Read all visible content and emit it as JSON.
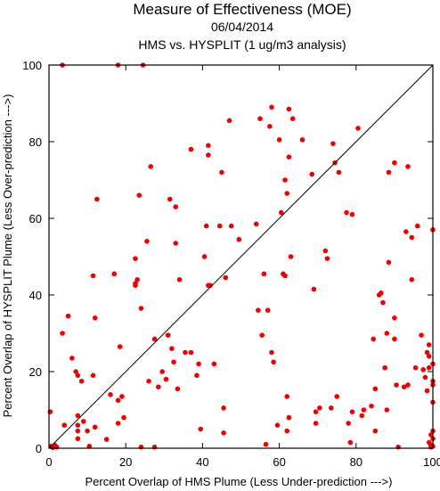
{
  "chart_data": {
    "type": "scatter",
    "title": "Measure of Effectiveness (MOE)",
    "subtitle_date": "06/04/2014",
    "subtitle_comparison": "HMS vs. HYSPLIT  (1 ug/m3 analysis)",
    "xlabel": "Percent Overlap of HMS Plume (Less Under-prediction --->)",
    "ylabel": "Percent Overlap of HYSPLIT Plume (Less Over-prediction --->)",
    "xlim": [
      0,
      100
    ],
    "ylim": [
      0,
      100
    ],
    "xticks": [
      0,
      20,
      40,
      60,
      80,
      100
    ],
    "yticks": [
      0,
      20,
      40,
      60,
      80,
      100
    ],
    "xtick_labels": [
      "0",
      "20",
      "40",
      "60",
      "80",
      "100"
    ],
    "ytick_labels": [
      "0",
      "20",
      "40",
      "60",
      "80",
      "100"
    ],
    "reference_line": {
      "from": [
        0,
        0
      ],
      "to": [
        100,
        100
      ],
      "color": "#000000"
    },
    "grid": false,
    "marker_color": "#ee0000",
    "points": [
      [
        0.3,
        9.5
      ],
      [
        0.5,
        0.5
      ],
      [
        1,
        0.2
      ],
      [
        1.5,
        0.8
      ],
      [
        2,
        0.3
      ],
      [
        3.5,
        100
      ],
      [
        3.5,
        30
      ],
      [
        4,
        6
      ],
      [
        5,
        34.5
      ],
      [
        6,
        23.5
      ],
      [
        7,
        20
      ],
      [
        7.5,
        19
      ],
      [
        7.5,
        8.5
      ],
      [
        7.5,
        6
      ],
      [
        7.5,
        4.5
      ],
      [
        7.5,
        2.5
      ],
      [
        8.5,
        17.5
      ],
      [
        9,
        7
      ],
      [
        10,
        4.5
      ],
      [
        10.5,
        0.5
      ],
      [
        11.5,
        45
      ],
      [
        11.5,
        19
      ],
      [
        12,
        34
      ],
      [
        12.5,
        65
      ],
      [
        12,
        5.5
      ],
      [
        15,
        2.3
      ],
      [
        16,
        14
      ],
      [
        17,
        45.5
      ],
      [
        18,
        100
      ],
      [
        18,
        12.5
      ],
      [
        18,
        6.5
      ],
      [
        18.5,
        26.5
      ],
      [
        19,
        13.5
      ],
      [
        19.5,
        8
      ],
      [
        22.5,
        49.5
      ],
      [
        22.5,
        43
      ],
      [
        22.5,
        42.5
      ],
      [
        23,
        44
      ],
      [
        23.5,
        66
      ],
      [
        24,
        36.5
      ],
      [
        24.5,
        100
      ],
      [
        24,
        0.3
      ],
      [
        25.5,
        54
      ],
      [
        26,
        17.5
      ],
      [
        26.5,
        73.5
      ],
      [
        27.5,
        28.5
      ],
      [
        27.5,
        0.3
      ],
      [
        28.5,
        16
      ],
      [
        29.5,
        20
      ],
      [
        30.5,
        18
      ],
      [
        31,
        29.5
      ],
      [
        31.5,
        65
      ],
      [
        32,
        26
      ],
      [
        32.5,
        22.5
      ],
      [
        33,
        53.5
      ],
      [
        33,
        63
      ],
      [
        33.5,
        15.5
      ],
      [
        34,
        44
      ],
      [
        35.5,
        25
      ],
      [
        37,
        78
      ],
      [
        37,
        25
      ],
      [
        38.5,
        19
      ],
      [
        39,
        22
      ],
      [
        39.5,
        5
      ],
      [
        40.5,
        50
      ],
      [
        41,
        58
      ],
      [
        41.5,
        79
      ],
      [
        41.5,
        76.5
      ],
      [
        41.5,
        42.5
      ],
      [
        42,
        42.5
      ],
      [
        43,
        22
      ],
      [
        44.5,
        58
      ],
      [
        45,
        72
      ],
      [
        45.5,
        10.5
      ],
      [
        45.5,
        4
      ],
      [
        46,
        44.5
      ],
      [
        47,
        85.5
      ],
      [
        47.5,
        58
      ],
      [
        49.5,
        54.5
      ],
      [
        54,
        58.5
      ],
      [
        54.5,
        36
      ],
      [
        55,
        86
      ],
      [
        55.5,
        29.5
      ],
      [
        56,
        45.5
      ],
      [
        56.5,
        1
      ],
      [
        57,
        36
      ],
      [
        57.5,
        84
      ],
      [
        58,
        89
      ],
      [
        58,
        25
      ],
      [
        58.5,
        22.5
      ],
      [
        59.5,
        6
      ],
      [
        60,
        80.5
      ],
      [
        60.5,
        61.5
      ],
      [
        61,
        45.5
      ],
      [
        61.5,
        70
      ],
      [
        61.5,
        45
      ],
      [
        62,
        66.5
      ],
      [
        62,
        13.5
      ],
      [
        62,
        4.5
      ],
      [
        62.5,
        8
      ],
      [
        62.5,
        76
      ],
      [
        62.5,
        88.5
      ],
      [
        63,
        50
      ],
      [
        63.5,
        86
      ],
      [
        66,
        80.5
      ],
      [
        68.5,
        71.5
      ],
      [
        69,
        41.5
      ],
      [
        69.5,
        9.5
      ],
      [
        69.5,
        6.5
      ],
      [
        70.5,
        10.5
      ],
      [
        72,
        51.5
      ],
      [
        72.5,
        49.5
      ],
      [
        73.5,
        10.5
      ],
      [
        74,
        79.5
      ],
      [
        74.5,
        74.5
      ],
      [
        75,
        13.5
      ],
      [
        75.5,
        72
      ],
      [
        77.5,
        61.5
      ],
      [
        78,
        6.5
      ],
      [
        78.5,
        1.5
      ],
      [
        79,
        61
      ],
      [
        79,
        9.5
      ],
      [
        80.5,
        83.5
      ],
      [
        81.5,
        8.5
      ],
      [
        82,
        10
      ],
      [
        84,
        11
      ],
      [
        84.5,
        28.5
      ],
      [
        85,
        15.5
      ],
      [
        85,
        4.5
      ],
      [
        86,
        40
      ],
      [
        86.5,
        40.5
      ],
      [
        87,
        38
      ],
      [
        87.5,
        21
      ],
      [
        88,
        30
      ],
      [
        88,
        10
      ],
      [
        88.5,
        72
      ],
      [
        88.5,
        48.5
      ],
      [
        90,
        74.5
      ],
      [
        90,
        34
      ],
      [
        90,
        28.5
      ],
      [
        90.5,
        16.5
      ],
      [
        91,
        0.3
      ],
      [
        92.5,
        16
      ],
      [
        93,
        56.5
      ],
      [
        93.5,
        73.5
      ],
      [
        93.5,
        16.5
      ],
      [
        94.5,
        44
      ],
      [
        94.5,
        55
      ],
      [
        95.5,
        21
      ],
      [
        96,
        58
      ],
      [
        97,
        29.5
      ],
      [
        97.5,
        20.5
      ],
      [
        98,
        18.5
      ],
      [
        98.5,
        25
      ],
      [
        98.5,
        15
      ],
      [
        99,
        27
      ],
      [
        99,
        24
      ],
      [
        99,
        21
      ],
      [
        99,
        1.5
      ],
      [
        99.5,
        3.5
      ],
      [
        99.5,
        0.8
      ],
      [
        99.5,
        0.3
      ],
      [
        100,
        57
      ],
      [
        100,
        22
      ],
      [
        100,
        17.5
      ],
      [
        100,
        16.5
      ],
      [
        100,
        12
      ],
      [
        100,
        4.5
      ],
      [
        100,
        2.5
      ],
      [
        100,
        0.5
      ]
    ]
  }
}
